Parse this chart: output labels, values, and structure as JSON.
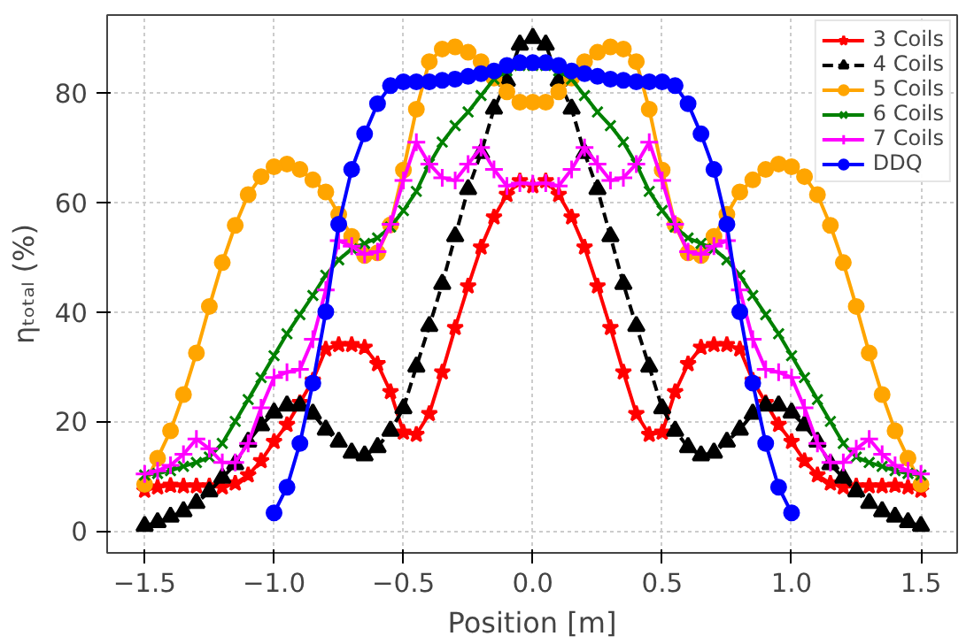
{
  "chart_data": {
    "type": "line",
    "xlabel": "Position [m]",
    "ylabel": "ηₜₒₜₐₗ (%)",
    "x": [
      -1.5,
      -1.45,
      -1.4,
      -1.35,
      -1.3,
      -1.25,
      -1.2,
      -1.15,
      -1.1,
      -1.05,
      -1.0,
      -0.95,
      -0.9,
      -0.85,
      -0.8,
      -0.75,
      -0.7,
      -0.65,
      -0.6,
      -0.55,
      -0.5,
      -0.45,
      -0.4,
      -0.35,
      -0.3,
      -0.25,
      -0.2,
      -0.15,
      -0.1,
      -0.05,
      0,
      0.05,
      0.1,
      0.15,
      0.2,
      0.25,
      0.3,
      0.35,
      0.4,
      0.45,
      0.5,
      0.55,
      0.6,
      0.65,
      0.7,
      0.75,
      0.8,
      0.85,
      0.9,
      0.95,
      1.0,
      1.05,
      1.1,
      1.15,
      1.2,
      1.25,
      1.3,
      1.35,
      1.4,
      1.45,
      1.5
    ],
    "series": [
      {
        "name": "3 Coils",
        "color": "#ff0000",
        "marker": "star",
        "line_style": "solid",
        "values": [
          7.4,
          8,
          8.3,
          8.2,
          8.2,
          8.2,
          8,
          8.7,
          10.2,
          12.8,
          16.3,
          19.4,
          23.4,
          27.5,
          33.2,
          34,
          34,
          33.5,
          30.5,
          25.4,
          18,
          17.6,
          21.4,
          29,
          37.1,
          44.7,
          51.8,
          57.3,
          61.4,
          63.9,
          63,
          63.9,
          61.4,
          57.3,
          51.8,
          44.7,
          37.1,
          29,
          21.4,
          17.6,
          18,
          25.4,
          30.5,
          33.5,
          34,
          34,
          33.2,
          27.5,
          23.4,
          19.4,
          16.3,
          12.8,
          10.2,
          8.7,
          8,
          8.2,
          8.2,
          8.2,
          8.3,
          8,
          7.4
        ]
      },
      {
        "name": "4 Coils",
        "color": "#000000",
        "marker": "triangle",
        "line_style": "dashed",
        "values": [
          0.9,
          1.6,
          2.6,
          3.6,
          5.1,
          7.2,
          9.7,
          12.2,
          16.3,
          19.3,
          21.6,
          22.9,
          22.9,
          21.4,
          18.5,
          16.3,
          14.3,
          13.8,
          15.3,
          18.3,
          22.4,
          30,
          37.4,
          45.1,
          53.8,
          62.4,
          69,
          77.1,
          82.2,
          88.8,
          90,
          88.8,
          82.2,
          77.1,
          69,
          62.4,
          53.8,
          45.1,
          37.4,
          30,
          22.4,
          18.3,
          15.3,
          13.8,
          14.3,
          16.3,
          18.5,
          21.4,
          22.9,
          22.9,
          21.6,
          19.3,
          16.3,
          12.2,
          9.7,
          7.2,
          5.1,
          3.6,
          2.6,
          1.6,
          0.9
        ]
      },
      {
        "name": "5 Coils",
        "color": "#ffa500",
        "marker": "circle",
        "line_style": "solid",
        "values": [
          8.5,
          13.3,
          18.3,
          24.9,
          32.5,
          41,
          49,
          55.8,
          61.4,
          64.7,
          66.5,
          67,
          66,
          64.1,
          61.9,
          57.8,
          53.8,
          50.3,
          50.8,
          55.9,
          65.9,
          77,
          85.7,
          88,
          88.4,
          87.4,
          85.7,
          82.7,
          80.2,
          78.3,
          78.3,
          78.3,
          80.2,
          82.7,
          85.7,
          87.4,
          88.4,
          88,
          85.7,
          77,
          65.9,
          55.9,
          50.8,
          50.3,
          53.8,
          57.8,
          61.9,
          64.1,
          66,
          67,
          66.5,
          64.7,
          61.4,
          55.8,
          49,
          41,
          32.5,
          24.9,
          18.3,
          13.3,
          8.5
        ]
      },
      {
        "name": "6 Coils",
        "color": "#008000",
        "marker": "x",
        "line_style": "solid",
        "values": [
          10.2,
          10.5,
          11,
          11.8,
          12.5,
          13.5,
          16,
          20,
          24,
          28,
          32,
          36,
          39.5,
          43,
          46.7,
          49.5,
          51.5,
          52.5,
          53.5,
          55.5,
          58.5,
          62,
          67,
          71,
          74,
          76.5,
          79.5,
          82.5,
          84,
          85,
          85,
          85,
          84,
          82.5,
          79.5,
          76.5,
          74,
          71,
          67,
          62,
          58.5,
          55.5,
          53.5,
          52.5,
          51.5,
          49.5,
          46.7,
          43,
          39.5,
          36,
          32,
          28,
          24,
          20,
          16,
          13.5,
          12.5,
          11.8,
          11,
          10.5,
          10.2
        ]
      },
      {
        "name": "7 Coils",
        "color": "#ff00ff",
        "marker": "cross",
        "line_style": "solid",
        "values": [
          10.4,
          11,
          12,
          14,
          16.8,
          15,
          12.5,
          12.5,
          16,
          22.5,
          28,
          29,
          29.5,
          35,
          44,
          53,
          52,
          50.5,
          51,
          56,
          64,
          71,
          67,
          64.5,
          64,
          67,
          70,
          66,
          63,
          63.5,
          63.4,
          63.5,
          63,
          66,
          70,
          67,
          64,
          64.5,
          67,
          71,
          64,
          56,
          51,
          50.5,
          52,
          53,
          44,
          35,
          29.5,
          29,
          28,
          22.5,
          16,
          12.5,
          12.5,
          15,
          16.8,
          14,
          12,
          11,
          10.4
        ]
      },
      {
        "name": "DDQ",
        "color": "#0000ff",
        "marker": "circle",
        "line_style": "solid",
        "x": [
          -1.0,
          -0.95,
          -0.9,
          -0.85,
          -0.8,
          -0.75,
          -0.7,
          -0.65,
          -0.6,
          -0.55,
          -0.5,
          -0.45,
          -0.4,
          -0.35,
          -0.3,
          -0.25,
          -0.2,
          -0.15,
          -0.1,
          -0.05,
          0,
          0.05,
          0.1,
          0.15,
          0.2,
          0.25,
          0.3,
          0.35,
          0.4,
          0.45,
          0.5,
          0.55,
          0.6,
          0.65,
          0.7,
          0.75,
          0.8,
          0.85,
          0.9,
          0.95,
          1.0
        ],
        "values": [
          3.3,
          8,
          16,
          27,
          40,
          56,
          66,
          72.5,
          78,
          81.3,
          82,
          82,
          82,
          82.3,
          82.5,
          83,
          83.5,
          84,
          85,
          85.5,
          85.5,
          85.5,
          85,
          84,
          83.5,
          83,
          82.5,
          82.3,
          82,
          82,
          82,
          81.3,
          78,
          72.5,
          66,
          56,
          40,
          27,
          16,
          8,
          3.3
        ]
      }
    ],
    "xlim": [
      -1.645,
      1.64
    ],
    "ylim": [
      -4,
      94.2
    ],
    "xticks": [
      {
        "value": -1.5,
        "label": "−1.5"
      },
      {
        "value": -1.0,
        "label": "−1.0"
      },
      {
        "value": -0.5,
        "label": "−0.5"
      },
      {
        "value": 0,
        "label": "0.0"
      },
      {
        "value": 0.5,
        "label": "0.5"
      },
      {
        "value": 1.0,
        "label": "1.0"
      },
      {
        "value": 1.5,
        "label": "1.5"
      }
    ],
    "yticks": [
      0,
      20,
      40,
      60,
      80
    ],
    "grid": true,
    "legend": "top right"
  }
}
